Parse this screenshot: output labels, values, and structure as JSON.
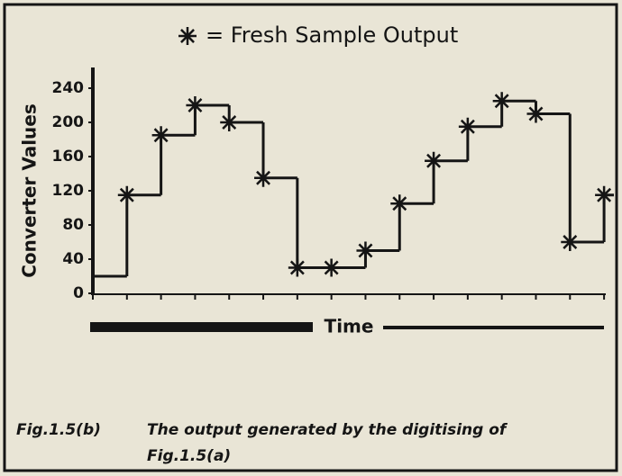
{
  "chart_data": {
    "type": "step",
    "series": [
      {
        "name": "= Fresh Sample Output",
        "color": "#151515",
        "values": [
          20,
          115,
          185,
          220,
          200,
          135,
          30,
          30,
          50,
          105,
          155,
          195,
          225,
          210,
          60,
          115
        ]
      }
    ],
    "x": [
      0,
      1,
      2,
      3,
      4,
      5,
      6,
      7,
      8,
      9,
      10,
      11,
      12,
      13,
      14,
      15
    ],
    "xlim": [
      0,
      15.5
    ],
    "ylim": [
      0,
      240
    ],
    "yticks": [
      0,
      40,
      80,
      120,
      160,
      200,
      240
    ],
    "ylabel": "Converter Values",
    "xlabel": "Time",
    "caption": {
      "label": "Fig.1.5(b)",
      "lines": [
        "The output generated by the digitising of",
        "Fig.1.5(a)"
      ]
    }
  }
}
